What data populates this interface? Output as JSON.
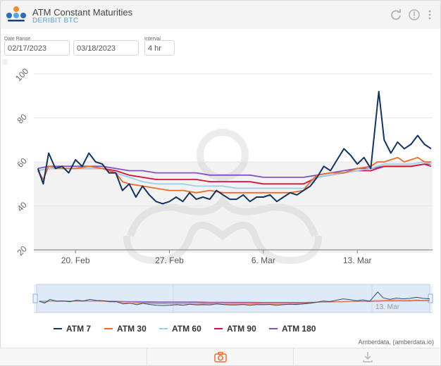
{
  "header": {
    "title": "ATM Constant Maturities",
    "subtitle": "DERIBIT BTC"
  },
  "controls": {
    "date_range_label": "Date Range",
    "start_date": "02/17/2023",
    "end_date": "03/18/2023",
    "interval_label": "Interval",
    "interval_value": "4 hr"
  },
  "credit": "Amberdata, (amberdata.io)",
  "colors": {
    "atm7": "#14335e",
    "atm30": "#ef6b2c",
    "atm60": "#9ccfe9",
    "atm90": "#d4123e",
    "atm180": "#8452c1"
  },
  "icons": {
    "refresh": "refresh-icon",
    "info": "info-icon",
    "menu": "more-vertical-icon",
    "camera": "camera-icon",
    "download": "download-icon"
  },
  "chart_data": {
    "type": "line",
    "title": "ATM Constant Maturities",
    "xlabel": "",
    "ylabel": "",
    "ylim": [
      20,
      100
    ],
    "xlim": [
      0,
      29.5
    ],
    "yticks": [
      20,
      40,
      60,
      80,
      100
    ],
    "x_ticks": [
      {
        "x": 3,
        "label": "20. Feb"
      },
      {
        "x": 10,
        "label": "27. Feb"
      },
      {
        "x": 17,
        "label": "6. Mar"
      },
      {
        "x": 24,
        "label": "13. Mar"
      }
    ],
    "navigator_label": "13. Mar",
    "x_unit": "days since 17 Feb 2023",
    "legend_position": "bottom",
    "series": [
      {
        "name": "ATM 7",
        "color": "#14335e",
        "points": [
          [
            0.2,
            57
          ],
          [
            0.6,
            50
          ],
          [
            1,
            64
          ],
          [
            1.5,
            57
          ],
          [
            2,
            58
          ],
          [
            2.5,
            55
          ],
          [
            3,
            61
          ],
          [
            3.5,
            58
          ],
          [
            4,
            64
          ],
          [
            4.5,
            60
          ],
          [
            5,
            59
          ],
          [
            5.5,
            55
          ],
          [
            6,
            55
          ],
          [
            6.5,
            47
          ],
          [
            7,
            50
          ],
          [
            7.5,
            44
          ],
          [
            8,
            49
          ],
          [
            8.5,
            45
          ],
          [
            9,
            42
          ],
          [
            9.5,
            41
          ],
          [
            10,
            42
          ],
          [
            10.5,
            44
          ],
          [
            11,
            42
          ],
          [
            11.5,
            46
          ],
          [
            12,
            43
          ],
          [
            12.5,
            44
          ],
          [
            13,
            43
          ],
          [
            13.5,
            47
          ],
          [
            14,
            45
          ],
          [
            14.5,
            43
          ],
          [
            15,
            43
          ],
          [
            15.5,
            45
          ],
          [
            16,
            42
          ],
          [
            16.5,
            44
          ],
          [
            17,
            44
          ],
          [
            17.5,
            45
          ],
          [
            18,
            42
          ],
          [
            18.5,
            44
          ],
          [
            19,
            46
          ],
          [
            19.5,
            45
          ],
          [
            20,
            47
          ],
          [
            20.5,
            49
          ],
          [
            21,
            53
          ],
          [
            21.5,
            58
          ],
          [
            22,
            56
          ],
          [
            22.5,
            61
          ],
          [
            23,
            66
          ],
          [
            23.5,
            63
          ],
          [
            24,
            59
          ],
          [
            24.5,
            62
          ],
          [
            25,
            57
          ],
          [
            25.6,
            92
          ],
          [
            26,
            70
          ],
          [
            26.5,
            64
          ],
          [
            27,
            69
          ],
          [
            27.5,
            66
          ],
          [
            28,
            68
          ],
          [
            28.5,
            72
          ],
          [
            29,
            68
          ],
          [
            29.5,
            66
          ]
        ]
      },
      {
        "name": "ATM 30",
        "color": "#ef6b2c",
        "points": [
          [
            0.2,
            56
          ],
          [
            0.6,
            52
          ],
          [
            1,
            58
          ],
          [
            2,
            57
          ],
          [
            3,
            57
          ],
          [
            4,
            58
          ],
          [
            5,
            57
          ],
          [
            6,
            55
          ],
          [
            6.5,
            51
          ],
          [
            7,
            50
          ],
          [
            8,
            49
          ],
          [
            9,
            48
          ],
          [
            10,
            47
          ],
          [
            11,
            47
          ],
          [
            12,
            46
          ],
          [
            13,
            47
          ],
          [
            14,
            46
          ],
          [
            15,
            46
          ],
          [
            16,
            46
          ],
          [
            17,
            46
          ],
          [
            18,
            46
          ],
          [
            19,
            46
          ],
          [
            20,
            47
          ],
          [
            20.5,
            51
          ],
          [
            21,
            54
          ],
          [
            22,
            55
          ],
          [
            23,
            55
          ],
          [
            24,
            57
          ],
          [
            25,
            58
          ],
          [
            25.5,
            60
          ],
          [
            26,
            60
          ],
          [
            27,
            62
          ],
          [
            27.5,
            60
          ],
          [
            28,
            61
          ],
          [
            28.5,
            62
          ],
          [
            29,
            60
          ],
          [
            29.5,
            60
          ]
        ]
      },
      {
        "name": "ATM 60",
        "color": "#9ccfe9",
        "points": [
          [
            0.2,
            56
          ],
          [
            1,
            57
          ],
          [
            2,
            57
          ],
          [
            3,
            57
          ],
          [
            4,
            57
          ],
          [
            5,
            57
          ],
          [
            6,
            55
          ],
          [
            7,
            53
          ],
          [
            8,
            51
          ],
          [
            9,
            50
          ],
          [
            10,
            50
          ],
          [
            11,
            50
          ],
          [
            12,
            49
          ],
          [
            13,
            49
          ],
          [
            14,
            49
          ],
          [
            15,
            48
          ],
          [
            16,
            48
          ],
          [
            17,
            48
          ],
          [
            18,
            48
          ],
          [
            19,
            48
          ],
          [
            20,
            48
          ],
          [
            21,
            53
          ],
          [
            22,
            54
          ],
          [
            23,
            55
          ],
          [
            24,
            56
          ],
          [
            25,
            57
          ],
          [
            26,
            59
          ],
          [
            27,
            59
          ],
          [
            28,
            59
          ],
          [
            29,
            60
          ],
          [
            29.5,
            59
          ]
        ]
      },
      {
        "name": "ATM 90",
        "color": "#d4123e",
        "points": [
          [
            0.2,
            56
          ],
          [
            1,
            57
          ],
          [
            2,
            57
          ],
          [
            3,
            57
          ],
          [
            4,
            57
          ],
          [
            5,
            57
          ],
          [
            6,
            56
          ],
          [
            7,
            54
          ],
          [
            8,
            53
          ],
          [
            9,
            52
          ],
          [
            10,
            52
          ],
          [
            11,
            52
          ],
          [
            12,
            52
          ],
          [
            13,
            51
          ],
          [
            14,
            51
          ],
          [
            15,
            51
          ],
          [
            16,
            51
          ],
          [
            17,
            50
          ],
          [
            18,
            50
          ],
          [
            19,
            50
          ],
          [
            20,
            50
          ],
          [
            21,
            53
          ],
          [
            22,
            54
          ],
          [
            23,
            55
          ],
          [
            24,
            56
          ],
          [
            25,
            56
          ],
          [
            26,
            58
          ],
          [
            27,
            58
          ],
          [
            28,
            58
          ],
          [
            29,
            59
          ],
          [
            29.5,
            58
          ]
        ]
      },
      {
        "name": "ATM 180",
        "color": "#8452c1",
        "points": [
          [
            0.2,
            57
          ],
          [
            1,
            58
          ],
          [
            2,
            58
          ],
          [
            3,
            58
          ],
          [
            4,
            58
          ],
          [
            5,
            58
          ],
          [
            6,
            57
          ],
          [
            7,
            56
          ],
          [
            8,
            56
          ],
          [
            9,
            55
          ],
          [
            10,
            55
          ],
          [
            11,
            55
          ],
          [
            12,
            55
          ],
          [
            13,
            54
          ],
          [
            14,
            54
          ],
          [
            15,
            54
          ],
          [
            16,
            54
          ],
          [
            17,
            53
          ],
          [
            18,
            53
          ],
          [
            19,
            53
          ],
          [
            20,
            53
          ],
          [
            21,
            54
          ],
          [
            22,
            55
          ],
          [
            23,
            56
          ],
          [
            24,
            57
          ],
          [
            25,
            57
          ],
          [
            26,
            58
          ],
          [
            27,
            58
          ],
          [
            28,
            58
          ],
          [
            29,
            59
          ],
          [
            29.5,
            59
          ]
        ]
      }
    ]
  }
}
